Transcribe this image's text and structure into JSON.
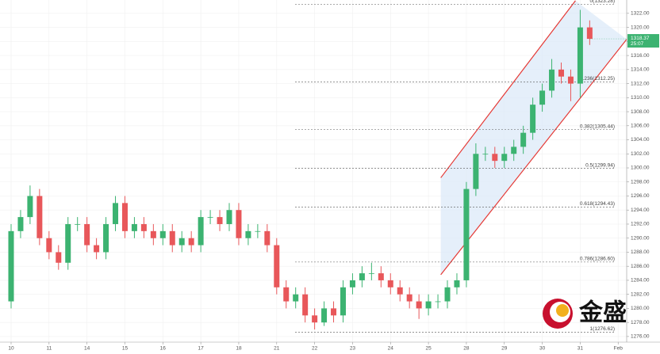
{
  "chart_data": {
    "type": "candlestick",
    "up_color": "#3cb371",
    "down_color": "#e8575a",
    "grid": true,
    "xlim": [
      -1.17,
      64.9
    ],
    "ylim": [
      1275.2,
      1323.9
    ],
    "xticks": [
      {
        "value": 0,
        "label": "10"
      },
      {
        "value": 4,
        "label": "11"
      },
      {
        "value": 8,
        "label": "14"
      },
      {
        "value": 12,
        "label": "15"
      },
      {
        "value": 16,
        "label": "16"
      },
      {
        "value": 20,
        "label": "17"
      },
      {
        "value": 24,
        "label": "18"
      },
      {
        "value": 28,
        "label": "21"
      },
      {
        "value": 32,
        "label": "22"
      },
      {
        "value": 36,
        "label": "23"
      },
      {
        "value": 40,
        "label": "24"
      },
      {
        "value": 44,
        "label": "25"
      },
      {
        "value": 48,
        "label": "28"
      },
      {
        "value": 52,
        "label": "29"
      },
      {
        "value": 56,
        "label": "30"
      },
      {
        "value": 60,
        "label": "31"
      },
      {
        "value": 64,
        "label": "Feb"
      }
    ],
    "yticks": [
      {
        "value": 1276,
        "label": "1276.00"
      },
      {
        "value": 1278,
        "label": "1278.00"
      },
      {
        "value": 1280,
        "label": "1280.00"
      },
      {
        "value": 1282,
        "label": "1282.00"
      },
      {
        "value": 1284,
        "label": "1284.00"
      },
      {
        "value": 1286,
        "label": "1286.00"
      },
      {
        "value": 1288,
        "label": "1288.00"
      },
      {
        "value": 1290,
        "label": "1290.00"
      },
      {
        "value": 1292,
        "label": "1292.00"
      },
      {
        "value": 1294,
        "label": "1294.00"
      },
      {
        "value": 1296,
        "label": "1296.00"
      },
      {
        "value": 1298,
        "label": "1298.00"
      },
      {
        "value": 1300,
        "label": "1300.00"
      },
      {
        "value": 1302,
        "label": "1302.00"
      },
      {
        "value": 1304,
        "label": "1304.00"
      },
      {
        "value": 1306,
        "label": "1306.00"
      },
      {
        "value": 1308,
        "label": "1308.00"
      },
      {
        "value": 1310,
        "label": "1310.00"
      },
      {
        "value": 1312,
        "label": "1312.00"
      },
      {
        "value": 1314,
        "label": "1314.00"
      },
      {
        "value": 1316,
        "label": "1316.00"
      },
      {
        "value": 1318,
        "label": "1318.00"
      },
      {
        "value": 1320,
        "label": "1320.00"
      },
      {
        "value": 1322,
        "label": "1322.00"
      }
    ],
    "open": [
      1281,
      1291,
      1293,
      1296,
      1290,
      1288,
      1286.5,
      1292,
      1292,
      1289,
      1288,
      1292,
      1295,
      1291,
      1292,
      1291,
      1290,
      1291,
      1289,
      1290,
      1289,
      1293,
      1293,
      1292,
      1294,
      1290,
      1291,
      1291,
      1289,
      1283,
      1281,
      1282,
      1279,
      1278,
      1280,
      1279,
      1283,
      1284,
      1285,
      1285,
      1284,
      1283,
      1282,
      1281,
      1280,
      1281,
      1281,
      1283,
      1284,
      1297,
      1302,
      1302,
      1301,
      1302,
      1303,
      1305,
      1309,
      1311,
      1314,
      1313,
      1312,
      1320
    ],
    "high": [
      1292,
      1294,
      1297.5,
      1297,
      1291,
      1289,
      1293,
      1293,
      1293,
      1290,
      1293,
      1296,
      1296,
      1293,
      1293,
      1292,
      1292,
      1292,
      1291,
      1291,
      1294,
      1294,
      1294,
      1295,
      1295,
      1292,
      1292,
      1292,
      1290,
      1284,
      1283,
      1283,
      1280,
      1281,
      1281,
      1284,
      1285,
      1286,
      1286.5,
      1286,
      1285,
      1284,
      1283,
      1282,
      1282,
      1282,
      1284,
      1285,
      1298,
      1303.5,
      1303,
      1303,
      1303,
      1304,
      1306,
      1310,
      1312,
      1315.5,
      1315,
      1314,
      1322.5,
      1321
    ],
    "low": [
      1280,
      1290,
      1292,
      1289,
      1287,
      1285.5,
      1285.5,
      1291,
      1288,
      1287,
      1287,
      1291,
      1290,
      1290,
      1290,
      1289,
      1289,
      1288,
      1288,
      1288,
      1288,
      1292,
      1291,
      1291,
      1289,
      1289,
      1290,
      1288,
      1282,
      1280,
      1280,
      1278,
      1277,
      1277.5,
      1278,
      1278,
      1282,
      1283,
      1284,
      1283,
      1282,
      1281,
      1280,
      1278.5,
      1279,
      1280,
      1280,
      1282,
      1283,
      1296,
      1301,
      1300,
      1300,
      1301,
      1302,
      1304,
      1308,
      1310,
      1312,
      1309.5,
      1310,
      1317.5
    ],
    "close": [
      1291,
      1293,
      1296,
      1290,
      1288,
      1286.5,
      1292,
      1292,
      1289,
      1288,
      1292,
      1295,
      1291,
      1292,
      1291,
      1290,
      1291,
      1289,
      1290,
      1289,
      1293,
      1293,
      1292,
      1294,
      1290,
      1291,
      1291,
      1289,
      1283,
      1281,
      1282,
      1279,
      1278,
      1280,
      1279,
      1283,
      1284,
      1285,
      1285,
      1284,
      1283,
      1282,
      1281,
      1280,
      1281,
      1281,
      1283,
      1284,
      1297,
      1302,
      1302,
      1301,
      1302,
      1303,
      1305,
      1309,
      1311,
      1314,
      1313,
      1312,
      1320,
      1318.37
    ],
    "fib_levels": [
      {
        "value": 1323.28,
        "label": "0(1323.28)"
      },
      {
        "value": 1312.25,
        "label": "0.236(1312.25)"
      },
      {
        "value": 1305.44,
        "label": "0.382(1305.44)"
      },
      {
        "value": 1299.94,
        "label": "0.5(1299.94)"
      },
      {
        "value": 1294.43,
        "label": "0.618(1294.43)"
      },
      {
        "value": 1286.6,
        "label": "0.786(1286.60)"
      },
      {
        "value": 1276.62,
        "label": "1(1276.62)"
      }
    ],
    "channel": {
      "color": "#e53935",
      "fill": "#dce9f8",
      "upper": {
        "x": [
          45.3,
          59.5
        ],
        "y": [
          1298.6,
          1323.8
        ]
      },
      "lower": {
        "x": [
          45.3,
          64.9
        ],
        "y": [
          1284.8,
          1318.3
        ]
      }
    },
    "last_price": 1318.37,
    "countdown": "25:07",
    "watermark": "金盛"
  }
}
